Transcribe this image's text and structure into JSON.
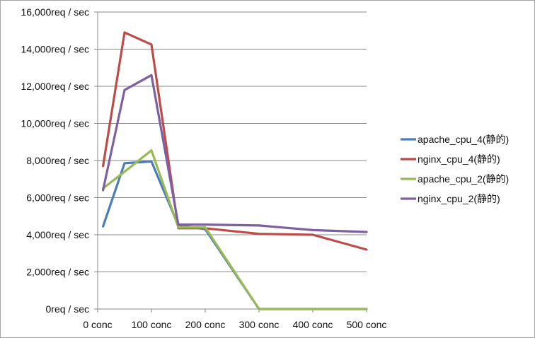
{
  "chart_data": {
    "type": "line",
    "title": "",
    "xlabel": "",
    "ylabel": "",
    "x": [
      10,
      50,
      100,
      150,
      200,
      300,
      400,
      500
    ],
    "x_ticks": [
      0,
      100,
      200,
      300,
      400,
      500
    ],
    "x_tick_labels": [
      "0 conc",
      "100 conc",
      "200 conc",
      "300 conc",
      "400 conc",
      "500 conc"
    ],
    "xlim": [
      0,
      500
    ],
    "ylim": [
      0,
      16000
    ],
    "y_ticks": [
      0,
      2000,
      4000,
      6000,
      8000,
      10000,
      12000,
      14000,
      16000
    ],
    "y_tick_labels": [
      "0req / sec",
      "2,000req / sec",
      "4,000req / sec",
      "6,000req / sec",
      "8,000req / sec",
      "10,000req / sec",
      "12,000req / sec",
      "14,000req / sec",
      "16,000req / sec"
    ],
    "grid": "horizontal",
    "legend_position": "right",
    "series": [
      {
        "name": "apache_cpu_4(静的)",
        "color": "#4a7ebb",
        "values": [
          4450,
          7850,
          7950,
          4500,
          4300,
          0,
          0,
          0
        ]
      },
      {
        "name": "nginx_cpu_4(静的)",
        "color": "#be4b48",
        "values": [
          7700,
          14900,
          14250,
          4350,
          4350,
          4050,
          4000,
          3200
        ]
      },
      {
        "name": "apache_cpu_2(静的)",
        "color": "#98b954",
        "values": [
          6500,
          7400,
          8550,
          4400,
          4400,
          0,
          0,
          0
        ]
      },
      {
        "name": "nginx_cpu_2(静的)",
        "color": "#7d60a0",
        "values": [
          6400,
          11800,
          12600,
          4550,
          4550,
          4500,
          4250,
          4150
        ]
      }
    ]
  }
}
